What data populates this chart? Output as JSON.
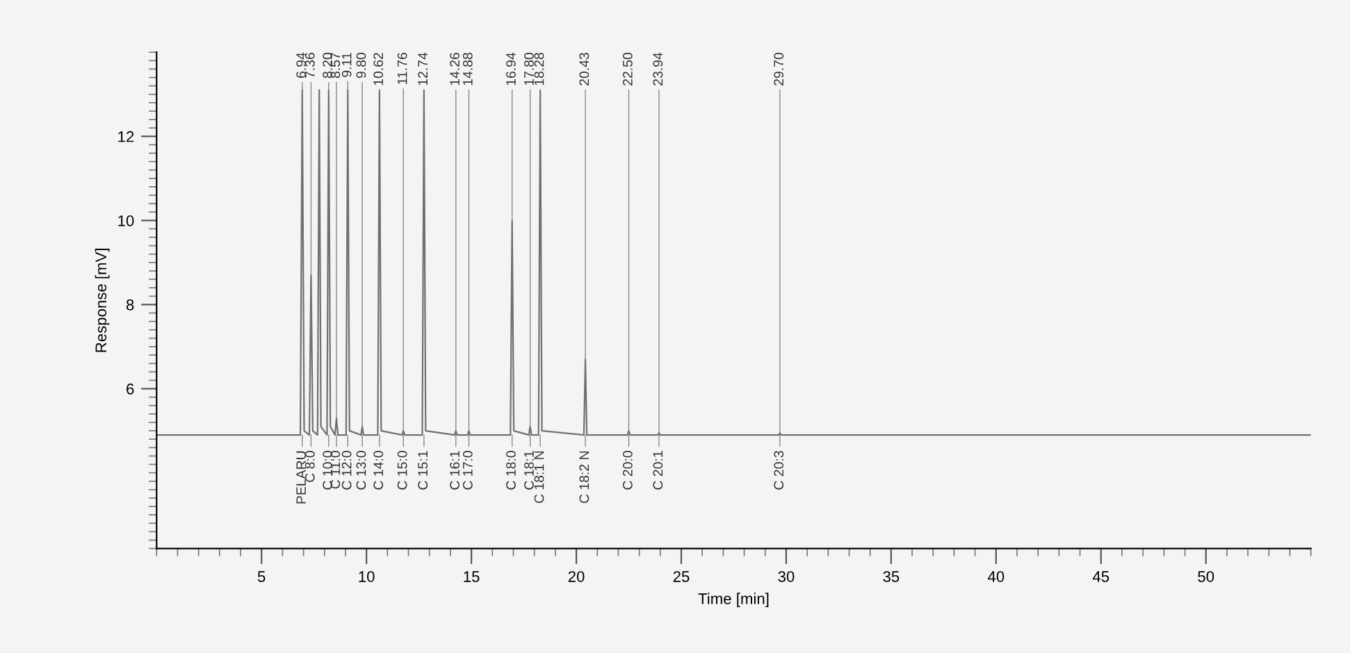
{
  "chart_data": {
    "type": "line",
    "xlabel": "Time [min]",
    "ylabel": "Response [mV]",
    "color": "#707070",
    "x": [
      0,
      6.85,
      6.94,
      7.03,
      7.28,
      7.36,
      7.44,
      7.67,
      7.75,
      7.83,
      8.12,
      8.2,
      8.28,
      8.5,
      8.57,
      8.64,
      9.03,
      9.11,
      9.19,
      9.74,
      9.8,
      9.86,
      10.54,
      10.62,
      10.7,
      11.7,
      11.76,
      11.82,
      12.66,
      12.74,
      12.82,
      14.2,
      14.26,
      14.32,
      14.82,
      14.88,
      14.94,
      16.86,
      16.94,
      17.02,
      17.74,
      17.8,
      17.86,
      18.2,
      18.28,
      18.36,
      20.36,
      20.43,
      20.5,
      22.44,
      22.5,
      22.56,
      23.88,
      23.94,
      24,
      29.64,
      29.7,
      29.76,
      55
    ],
    "values": [
      4.9,
      4.9,
      13.1,
      5.0,
      4.9,
      8.7,
      5.0,
      4.9,
      13.1,
      5.1,
      4.9,
      13.1,
      5.1,
      4.9,
      5.3,
      4.9,
      4.9,
      13.1,
      5.0,
      4.9,
      5.1,
      4.9,
      4.9,
      13.1,
      5.0,
      4.9,
      5.0,
      4.9,
      4.9,
      13.1,
      5.0,
      4.9,
      5.0,
      4.9,
      4.9,
      5.0,
      4.9,
      4.9,
      10.0,
      5.0,
      4.9,
      5.1,
      4.9,
      4.9,
      13.1,
      5.0,
      4.9,
      6.7,
      4.9,
      4.9,
      5.0,
      4.9,
      4.9,
      4.95,
      4.9,
      4.9,
      4.95,
      4.9,
      4.9
    ],
    "xlim": [
      0,
      55
    ],
    "xticks": [
      5,
      10,
      15,
      20,
      25,
      30,
      35,
      40,
      45,
      50
    ],
    "ylim": [
      2.2,
      14
    ],
    "yticks": [
      6,
      8,
      10,
      12
    ],
    "grid": false,
    "legend": false,
    "annotations": [
      {
        "text": "6.94",
        "x": 6.94,
        "y": 13.1
      },
      {
        "text": "7.36",
        "x": 7.36,
        "y": 8.7
      },
      {
        "text": "8.20",
        "x": 8.2,
        "y": 13.1
      },
      {
        "text": "8.57",
        "x": 8.57,
        "y": 5.3
      },
      {
        "text": "9.11",
        "x": 9.11,
        "y": 13.1
      },
      {
        "text": "9.80",
        "x": 9.8,
        "y": 5.1
      },
      {
        "text": "10.62",
        "x": 10.62,
        "y": 13.1
      },
      {
        "text": "11.76",
        "x": 11.76,
        "y": 5.0
      },
      {
        "text": "12.74",
        "x": 12.74,
        "y": 13.1
      },
      {
        "text": "14.26",
        "x": 14.26,
        "y": 5.0
      },
      {
        "text": "14.88",
        "x": 14.88,
        "y": 5.0
      },
      {
        "text": "16.94",
        "x": 16.94,
        "y": 10.0
      },
      {
        "text": "17.80",
        "x": 17.8,
        "y": 5.1
      },
      {
        "text": "18.28",
        "x": 18.28,
        "y": 13.1
      },
      {
        "text": "20.43",
        "x": 20.43,
        "y": 6.7
      },
      {
        "text": "22.50",
        "x": 22.5,
        "y": 5.0
      },
      {
        "text": "23.94",
        "x": 23.94,
        "y": 4.95
      },
      {
        "text": "29.70",
        "x": 29.7,
        "y": 4.95
      },
      {
        "text": "PELARU",
        "x": 6.94,
        "y": 4.9
      },
      {
        "text": "C 8:0",
        "x": 7.36,
        "y": 4.9
      },
      {
        "text": "C 10:0",
        "x": 8.2,
        "y": 4.9
      },
      {
        "text": "C 11:0",
        "x": 8.57,
        "y": 4.9
      },
      {
        "text": "C 12:0",
        "x": 9.11,
        "y": 4.9
      },
      {
        "text": "C 13:0",
        "x": 9.8,
        "y": 4.9
      },
      {
        "text": "C 14:0",
        "x": 10.62,
        "y": 4.9
      },
      {
        "text": "C 15:0",
        "x": 11.76,
        "y": 4.9
      },
      {
        "text": "C 15:1",
        "x": 12.74,
        "y": 4.9
      },
      {
        "text": "C 16:1",
        "x": 14.26,
        "y": 4.9
      },
      {
        "text": "C 17:0",
        "x": 14.88,
        "y": 4.9
      },
      {
        "text": "C 18:0",
        "x": 16.94,
        "y": 4.9
      },
      {
        "text": "C 18:1",
        "x": 17.8,
        "y": 4.9
      },
      {
        "text": "C 18:1 N",
        "x": 18.28,
        "y": 4.9
      },
      {
        "text": "C 18:2 N",
        "x": 20.43,
        "y": 4.9
      },
      {
        "text": "C 20:0",
        "x": 22.5,
        "y": 4.9
      },
      {
        "text": "C 20:1",
        "x": 23.94,
        "y": 4.9
      },
      {
        "text": "C 20:3",
        "x": 29.7,
        "y": 4.9
      }
    ]
  }
}
